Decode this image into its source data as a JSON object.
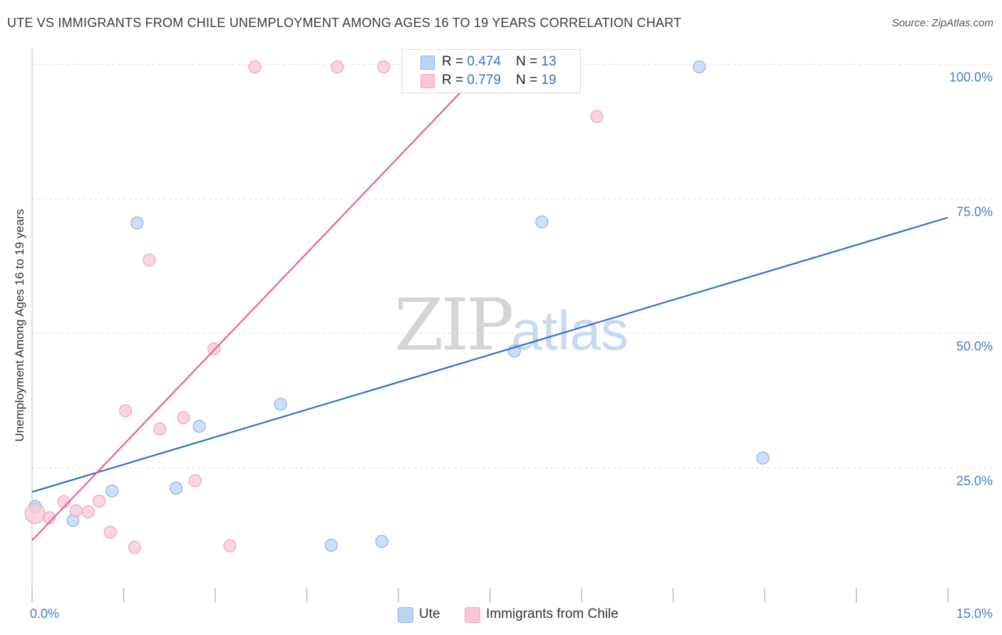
{
  "title": "UTE VS IMMIGRANTS FROM CHILE UNEMPLOYMENT AMONG AGES 16 TO 19 YEARS CORRELATION CHART",
  "source": "Source: ZipAtlas.com",
  "watermark": {
    "zip": "ZIP",
    "atlas": "atlas"
  },
  "colors": {
    "ute_fill": "#bcd3f5",
    "ute_stroke": "#8fb3e6",
    "ute_line": "#2f6fce",
    "chile_fill": "#f8c7d6",
    "chile_stroke": "#f0a3bb",
    "chile_line": "#e8628d",
    "grid": "#dddddd",
    "axis_label": "#4a7cc9"
  },
  "legend_top": {
    "rows": [
      {
        "series": "Ute",
        "r_label": "R = ",
        "r_value": "0.474",
        "n_label": "N = ",
        "n_value": "13"
      },
      {
        "series": "Immigrants from Chile",
        "r_label": "R = ",
        "r_value": "0.779",
        "n_label": "N = ",
        "n_value": "19"
      }
    ]
  },
  "legend_bottom": {
    "items": [
      "Ute",
      "Immigrants from Chile"
    ]
  },
  "chart_data": {
    "type": "scatter",
    "title": "UTE VS IMMIGRANTS FROM CHILE UNEMPLOYMENT AMONG AGES 16 TO 19 YEARS CORRELATION CHART",
    "xlabel": "",
    "ylabel": "Unemployment Among Ages 16 to 19 years",
    "xlim": [
      0,
      15
    ],
    "ylim": [
      0,
      104
    ],
    "x_tick_labels": [
      "0.0%",
      "15.0%"
    ],
    "y_ticks": [
      25,
      50,
      75,
      100
    ],
    "y_tick_labels": [
      "25.0%",
      "50.0%",
      "75.0%",
      "100.0%"
    ],
    "grid": true,
    "legend_position": "bottom",
    "series": [
      {
        "name": "Ute",
        "R": 0.474,
        "N": 13,
        "trend": {
          "x": [
            0,
            15
          ],
          "y": [
            20.5,
            71.5
          ]
        },
        "points": [
          {
            "x": 0.05,
            "y": 17.8
          },
          {
            "x": 0.67,
            "y": 15.2
          },
          {
            "x": 1.31,
            "y": 20.7
          },
          {
            "x": 1.72,
            "y": 70.5
          },
          {
            "x": 2.36,
            "y": 21.2
          },
          {
            "x": 2.74,
            "y": 32.7
          },
          {
            "x": 4.07,
            "y": 36.8
          },
          {
            "x": 4.9,
            "y": 10.6
          },
          {
            "x": 5.73,
            "y": 11.3
          },
          {
            "x": 7.9,
            "y": 46.7
          },
          {
            "x": 8.35,
            "y": 70.7
          },
          {
            "x": 10.93,
            "y": 99.5
          },
          {
            "x": 11.97,
            "y": 26.8
          }
        ]
      },
      {
        "name": "Immigrants from Chile",
        "R": 0.779,
        "N": 19,
        "trend": {
          "x": [
            0,
            7.5
          ],
          "y": [
            11.5,
            100.5
          ]
        },
        "points": [
          {
            "x": 0.05,
            "y": 16.5
          },
          {
            "x": 0.28,
            "y": 15.7
          },
          {
            "x": 0.52,
            "y": 18.7
          },
          {
            "x": 0.72,
            "y": 17.0
          },
          {
            "x": 0.92,
            "y": 16.8
          },
          {
            "x": 1.1,
            "y": 18.8
          },
          {
            "x": 1.28,
            "y": 13.0
          },
          {
            "x": 1.53,
            "y": 35.6
          },
          {
            "x": 1.68,
            "y": 10.2
          },
          {
            "x": 1.92,
            "y": 63.6
          },
          {
            "x": 2.09,
            "y": 32.2
          },
          {
            "x": 2.48,
            "y": 34.3
          },
          {
            "x": 2.67,
            "y": 22.6
          },
          {
            "x": 2.98,
            "y": 47.1
          },
          {
            "x": 3.24,
            "y": 10.5
          },
          {
            "x": 3.65,
            "y": 99.5
          },
          {
            "x": 5.0,
            "y": 99.5
          },
          {
            "x": 5.76,
            "y": 99.5
          },
          {
            "x": 9.25,
            "y": 90.3
          }
        ]
      }
    ]
  }
}
